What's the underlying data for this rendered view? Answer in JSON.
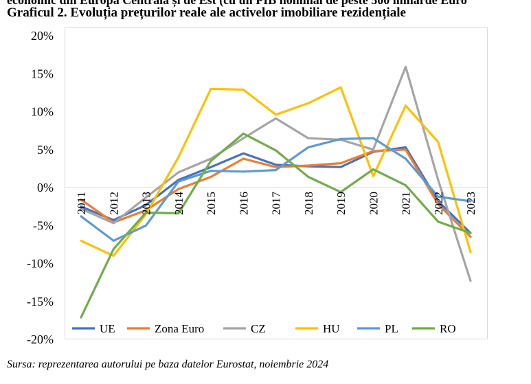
{
  "header": {
    "cut_line": "economic din Europa Centrală și de Est (cu un PIB nominal de peste 500 miliarde Euro",
    "title": "Graficul 2. Evoluția prețurilor reale ale activelor imobiliare rezidențiale"
  },
  "source": "Sursa: reprezentarea autorului pe baza datelor Eurostat, noiembrie 2024",
  "chart_data": {
    "type": "line",
    "title": "",
    "xlabel": "",
    "ylabel": "",
    "x": [
      "2011",
      "2012",
      "2013",
      "2014",
      "2015",
      "2016",
      "2017",
      "2018",
      "2019",
      "2020",
      "2021",
      "2022",
      "2023"
    ],
    "ylim": [
      -20,
      20
    ],
    "yticks": [
      -20,
      -15,
      -10,
      -5,
      0,
      5,
      10,
      15,
      20
    ],
    "ytick_labels": [
      "-20%",
      "-15%",
      "-10%",
      "-5%",
      "0%",
      "5%",
      "10%",
      "15%",
      "20%"
    ],
    "legend_position": "bottom",
    "series": [
      {
        "name": "UE",
        "color": "#4472c4",
        "values": [
          -2.5,
          -4.3,
          -2.3,
          1.0,
          2.7,
          4.5,
          3.0,
          2.8,
          2.7,
          4.7,
          5.3,
          -1.8,
          -6.0
        ]
      },
      {
        "name": "Zona Euro",
        "color": "#ed7d31",
        "values": [
          -1.6,
          -4.6,
          -3.0,
          -0.2,
          1.4,
          3.8,
          2.7,
          2.9,
          3.2,
          4.8,
          5.0,
          -2.2,
          -6.5
        ]
      },
      {
        "name": "CZ",
        "color": "#a5a5a5",
        "values": [
          -2.8,
          -4.7,
          -1.3,
          2.0,
          3.8,
          6.5,
          9.1,
          6.5,
          6.3,
          5.0,
          15.9,
          1.0,
          -12.3
        ]
      },
      {
        "name": "HU",
        "color": "#ffc000",
        "values": [
          -7.0,
          -9.0,
          -3.5,
          4.0,
          13.0,
          12.9,
          9.6,
          11.1,
          13.2,
          1.5,
          10.8,
          6.0,
          -8.5
        ]
      },
      {
        "name": "PL",
        "color": "#5b9bd5",
        "values": [
          -3.8,
          -7.0,
          -5.0,
          0.8,
          2.2,
          2.1,
          2.3,
          5.3,
          6.4,
          6.5,
          3.8,
          -1.2,
          -1.8
        ]
      },
      {
        "name": "RO",
        "color": "#70ad47",
        "values": [
          -17.1,
          -8.1,
          -3.3,
          -3.4,
          3.5,
          7.1,
          4.9,
          1.4,
          -0.6,
          2.4,
          0.3,
          -4.5,
          -6.0
        ]
      }
    ]
  }
}
